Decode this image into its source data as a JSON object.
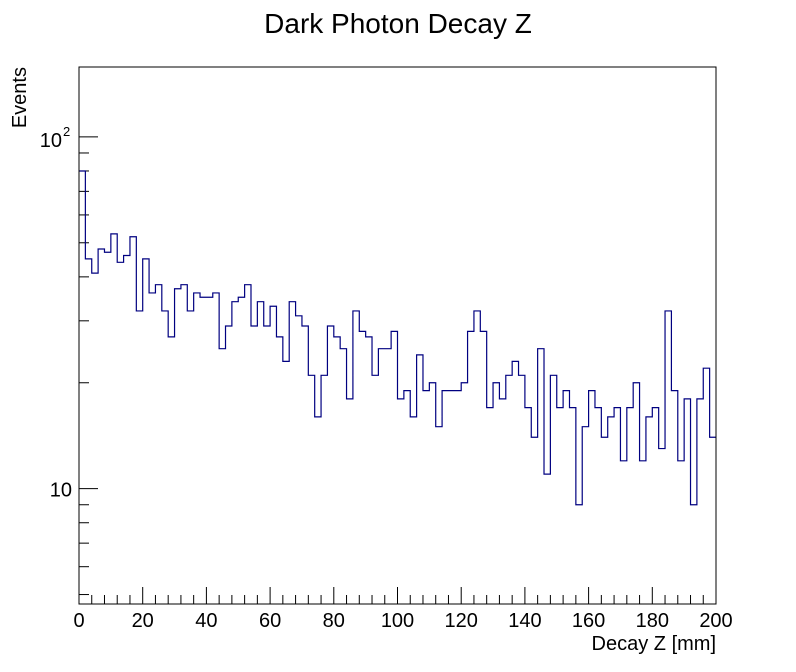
{
  "chart_data": {
    "type": "histogram",
    "title": "Dark Photon Decay Z",
    "xlabel": "Decay Z [mm]",
    "ylabel": "Events",
    "yscale": "log",
    "xlim": [
      0,
      200
    ],
    "ylim": [
      4.7,
      158
    ],
    "x_ticks": [
      0,
      20,
      40,
      60,
      80,
      100,
      120,
      140,
      160,
      180,
      200
    ],
    "x_tick_labels": [
      "0",
      "20",
      "40",
      "60",
      "80",
      "100",
      "120",
      "140",
      "160",
      "180",
      "200"
    ],
    "y_major_ticks": [
      10,
      100
    ],
    "y_tick_labels": [
      {
        "base": "10",
        "exp": ""
      },
      {
        "base": "10",
        "exp": "2"
      }
    ],
    "line_color": "#000080",
    "bin_width": 2,
    "bin_start": 0,
    "values": [
      80,
      45,
      41,
      48,
      47,
      53,
      44,
      46,
      52,
      32,
      45,
      36,
      38,
      32,
      27,
      37,
      38,
      32,
      36,
      35,
      35,
      36,
      25,
      29,
      34,
      35,
      38,
      29,
      34,
      29,
      33,
      27,
      23,
      34,
      31,
      29,
      21,
      16,
      21,
      29,
      27,
      25,
      18,
      32,
      28,
      27,
      21,
      25,
      25,
      28,
      18,
      19,
      16,
      24,
      19,
      20,
      15,
      19,
      19,
      19,
      20,
      28,
      32,
      28,
      17,
      20,
      18,
      21,
      23,
      21,
      17,
      14,
      25,
      11,
      21,
      17,
      19,
      17,
      9,
      15,
      19,
      17,
      14,
      16,
      17,
      12,
      17,
      20,
      12,
      16,
      17,
      13,
      32,
      19,
      12,
      18,
      9,
      18,
      22,
      14
    ]
  }
}
